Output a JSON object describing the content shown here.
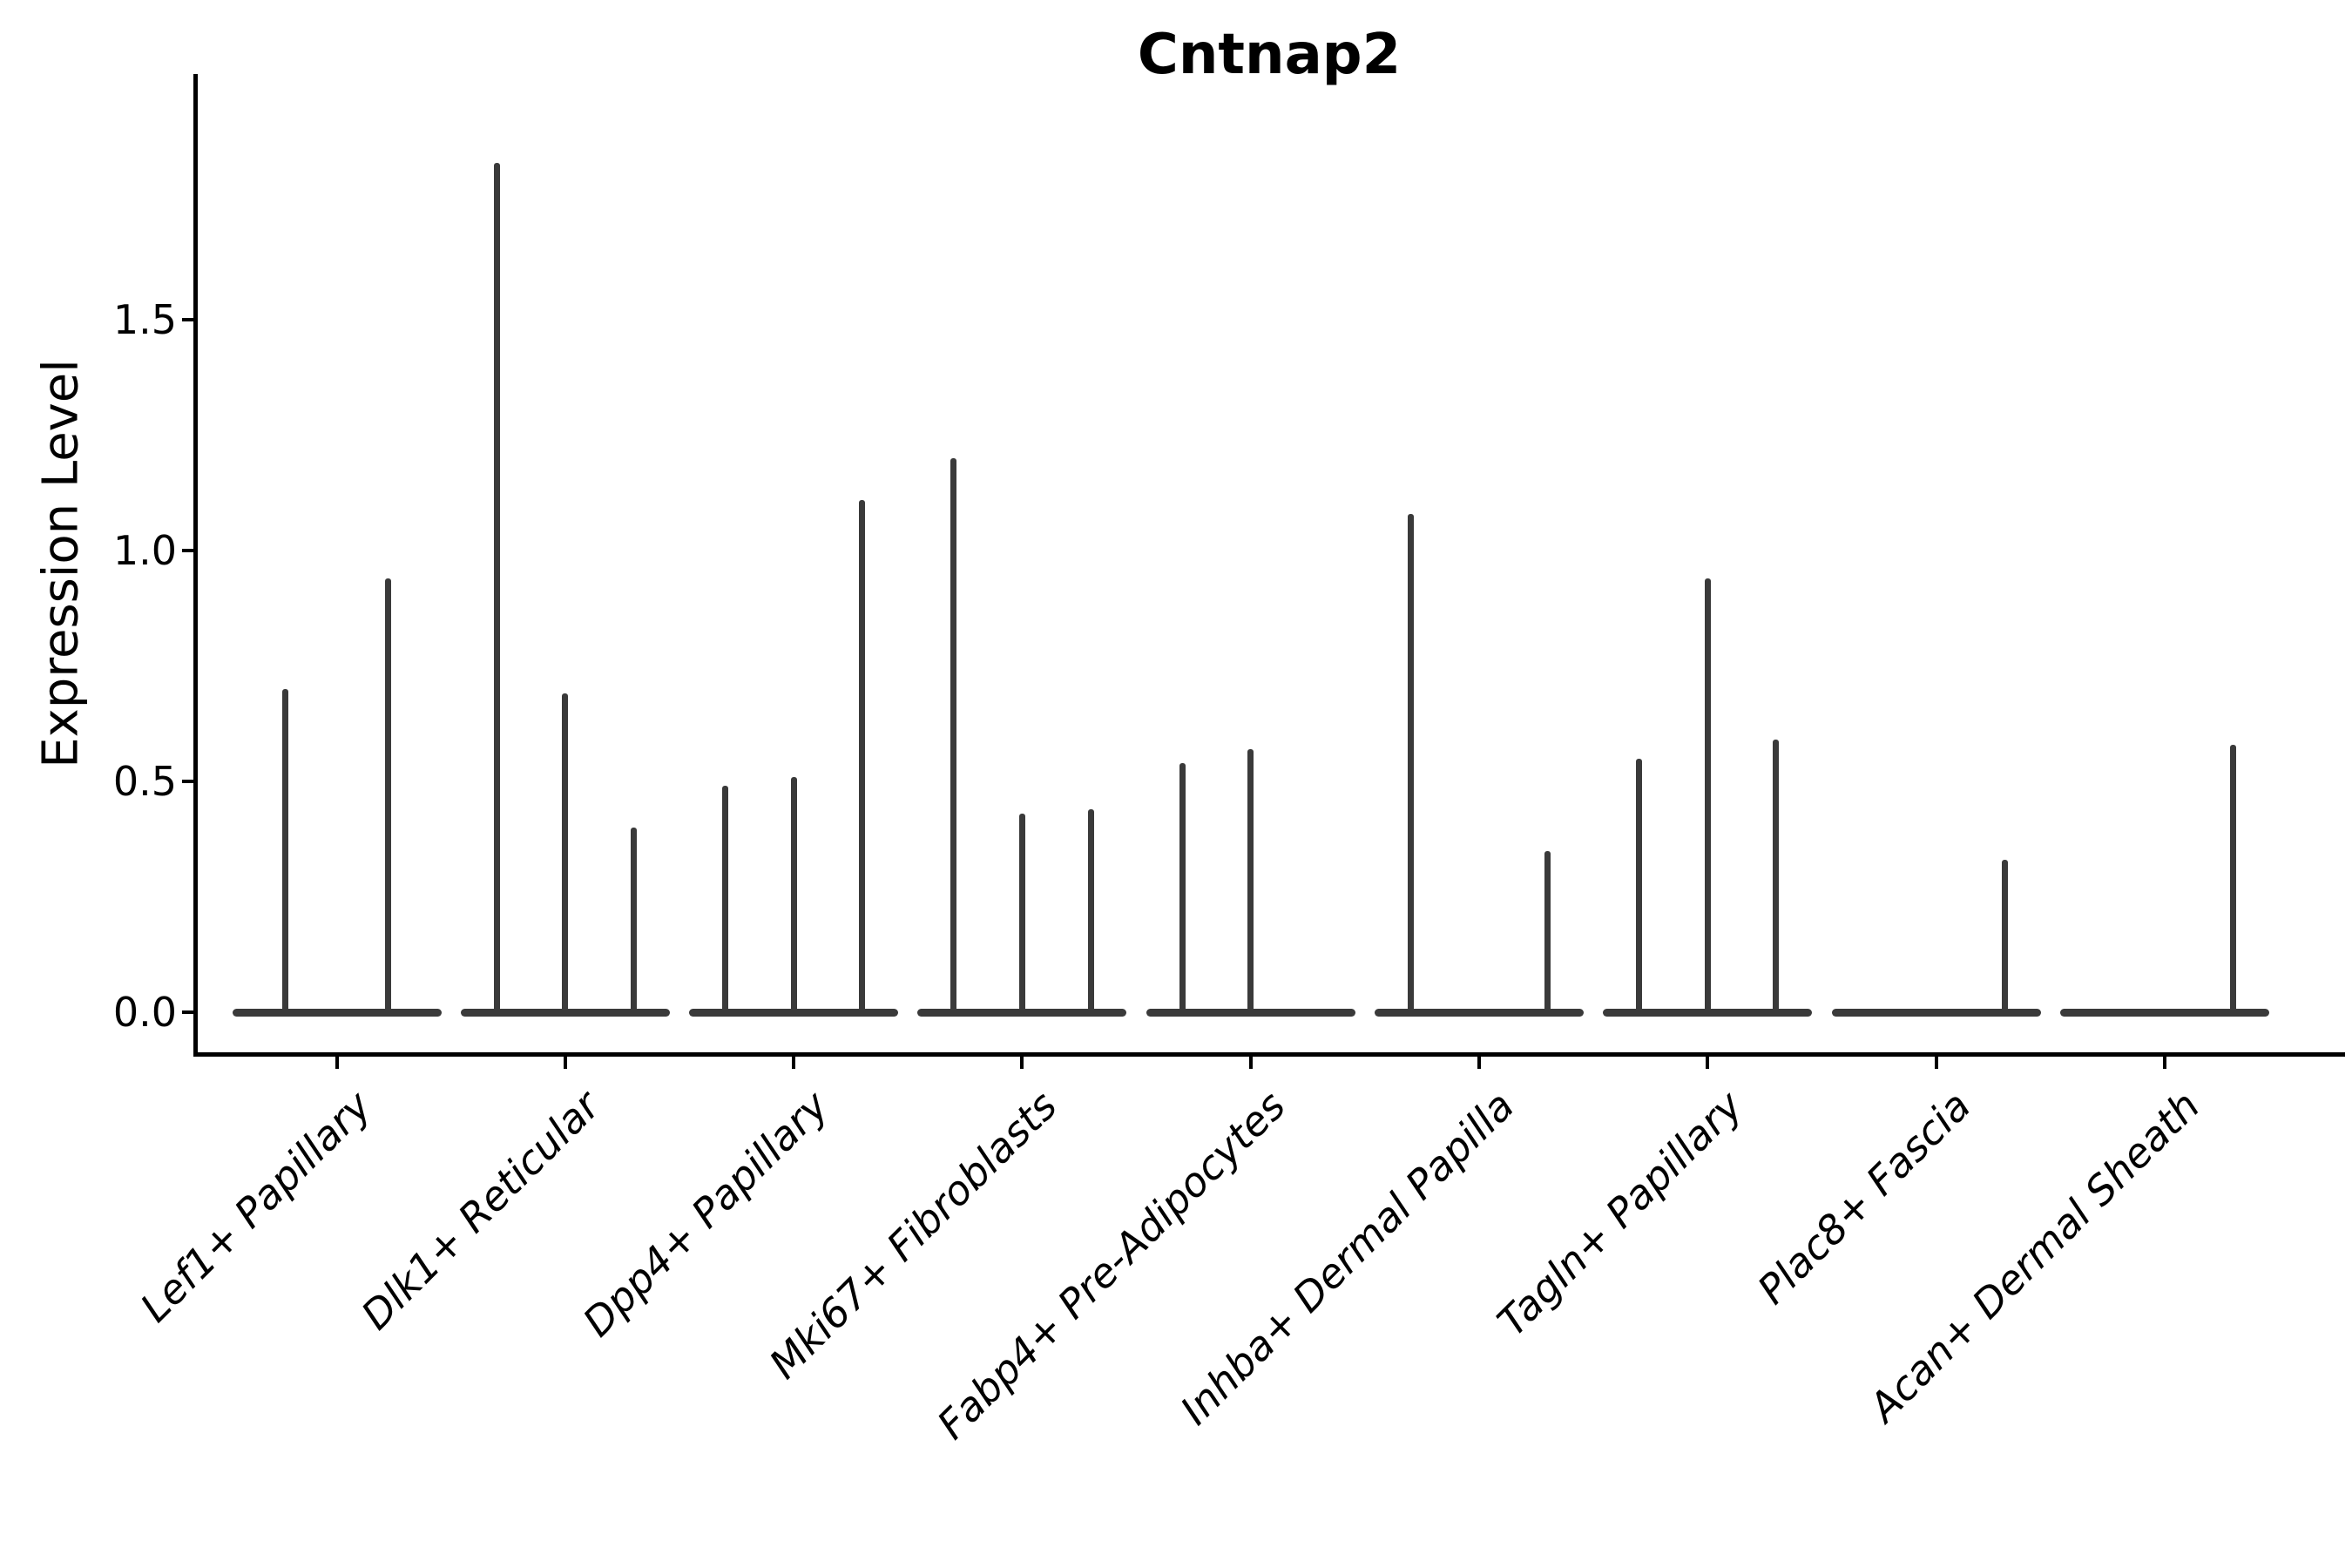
{
  "chart_data": {
    "type": "violin",
    "title": "Cntnap2",
    "xlabel": "",
    "ylabel": "Expression Level",
    "ylim": [
      -0.09,
      2.03
    ],
    "yticks": [
      0.0,
      0.5,
      1.0,
      1.5
    ],
    "grid": false,
    "legend": "none",
    "violin_color": "#3a3a3a",
    "axis_color": "#000000",
    "categories": [
      "Lef1+ Papillary",
      "Dlk1+ Reticular",
      "Dpp4+ Papillary",
      "Mki67+ Fibroblasts",
      "Fabp4+ Pre-Adipocytes",
      "Inhba+ Dermal Papilla",
      "Tagln+ Papillary",
      "Plac8+ Fascia",
      "Acan+ Dermal Sheath"
    ],
    "violins": [
      {
        "category": "Lef1+ Papillary",
        "spikes": [
          {
            "offset": -0.225,
            "max": 0.7
          },
          {
            "offset": 0.225,
            "max": 0.94
          }
        ]
      },
      {
        "category": "Dlk1+ Reticular",
        "spikes": [
          {
            "offset": -0.3,
            "max": 1.84
          },
          {
            "offset": 0.0,
            "max": 0.69
          },
          {
            "offset": 0.3,
            "max": 0.4
          }
        ]
      },
      {
        "category": "Dpp4+ Papillary",
        "spikes": [
          {
            "offset": -0.3,
            "max": 0.49
          },
          {
            "offset": 0.0,
            "max": 0.51
          },
          {
            "offset": 0.3,
            "max": 1.11
          }
        ]
      },
      {
        "category": "Mki67+ Fibroblasts",
        "spikes": [
          {
            "offset": -0.3,
            "max": 1.2
          },
          {
            "offset": 0.0,
            "max": 0.43
          },
          {
            "offset": 0.3,
            "max": 0.44
          }
        ]
      },
      {
        "category": "Fabp4+ Pre-Adipocytes",
        "spikes": [
          {
            "offset": -0.3,
            "max": 0.54
          },
          {
            "offset": 0.0,
            "max": 0.57
          }
        ]
      },
      {
        "category": "Inhba+ Dermal Papilla",
        "spikes": [
          {
            "offset": -0.3,
            "max": 1.08
          },
          {
            "offset": 0.3,
            "max": 0.35
          }
        ]
      },
      {
        "category": "Tagln+ Papillary",
        "spikes": [
          {
            "offset": -0.3,
            "max": 0.55
          },
          {
            "offset": 0.0,
            "max": 0.94
          },
          {
            "offset": 0.3,
            "max": 0.59
          }
        ]
      },
      {
        "category": "Plac8+ Fascia",
        "spikes": [
          {
            "offset": 0.3,
            "max": 0.33
          }
        ]
      },
      {
        "category": "Acan+ Dermal Sheath",
        "spikes": [
          {
            "offset": 0.3,
            "max": 0.58
          }
        ]
      }
    ]
  }
}
